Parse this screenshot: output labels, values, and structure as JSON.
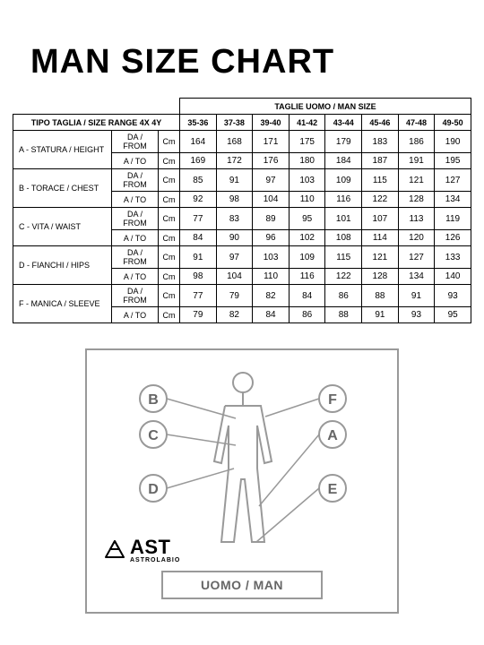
{
  "title": "MAN SIZE CHART",
  "table": {
    "header_top": "TAGLIE UOMO / MAN SIZE",
    "size_range_label": "TIPO TAGLIA / SIZE RANGE 4X 4Y",
    "sizes": [
      "35-36",
      "37-38",
      "39-40",
      "41-42",
      "43-44",
      "45-46",
      "47-48",
      "49-50"
    ],
    "from_label": "DA / FROM",
    "to_label": "A / TO",
    "unit": "Cm",
    "rows": [
      {
        "label": "A - STATURA / HEIGHT",
        "from": [
          "164",
          "168",
          "171",
          "175",
          "179",
          "183",
          "186",
          "190"
        ],
        "to": [
          "169",
          "172",
          "176",
          "180",
          "184",
          "187",
          "191",
          "195"
        ]
      },
      {
        "label": "B - TORACE / CHEST",
        "from": [
          "85",
          "91",
          "97",
          "103",
          "109",
          "115",
          "121",
          "127"
        ],
        "to": [
          "92",
          "98",
          "104",
          "110",
          "116",
          "122",
          "128",
          "134"
        ]
      },
      {
        "label": "C - VITA / WAIST",
        "from": [
          "77",
          "83",
          "89",
          "95",
          "101",
          "107",
          "113",
          "119"
        ],
        "to": [
          "84",
          "90",
          "96",
          "102",
          "108",
          "114",
          "120",
          "126"
        ]
      },
      {
        "label": "D - FIANCHI / HIPS",
        "from": [
          "91",
          "97",
          "103",
          "109",
          "115",
          "121",
          "127",
          "133"
        ],
        "to": [
          "98",
          "104",
          "110",
          "116",
          "122",
          "128",
          "134",
          "140"
        ]
      },
      {
        "label": "F - MANICA / SLEEVE",
        "from": [
          "77",
          "79",
          "82",
          "84",
          "86",
          "88",
          "91",
          "93"
        ],
        "to": [
          "79",
          "82",
          "84",
          "86",
          "88",
          "91",
          "93",
          "95"
        ]
      }
    ]
  },
  "diagram": {
    "label": "UOMO / MAN",
    "markers": [
      "B",
      "C",
      "D",
      "F",
      "A",
      "E"
    ],
    "circle_stroke": "#999999",
    "line_stroke": "#999999",
    "figure_stroke": "#999999"
  },
  "logo": {
    "text": "AST",
    "sub": "ASTROLABIO"
  },
  "colors": {
    "text": "#000000",
    "border": "#000000",
    "box": "#999999",
    "muted": "#666666",
    "bg": "#ffffff"
  }
}
